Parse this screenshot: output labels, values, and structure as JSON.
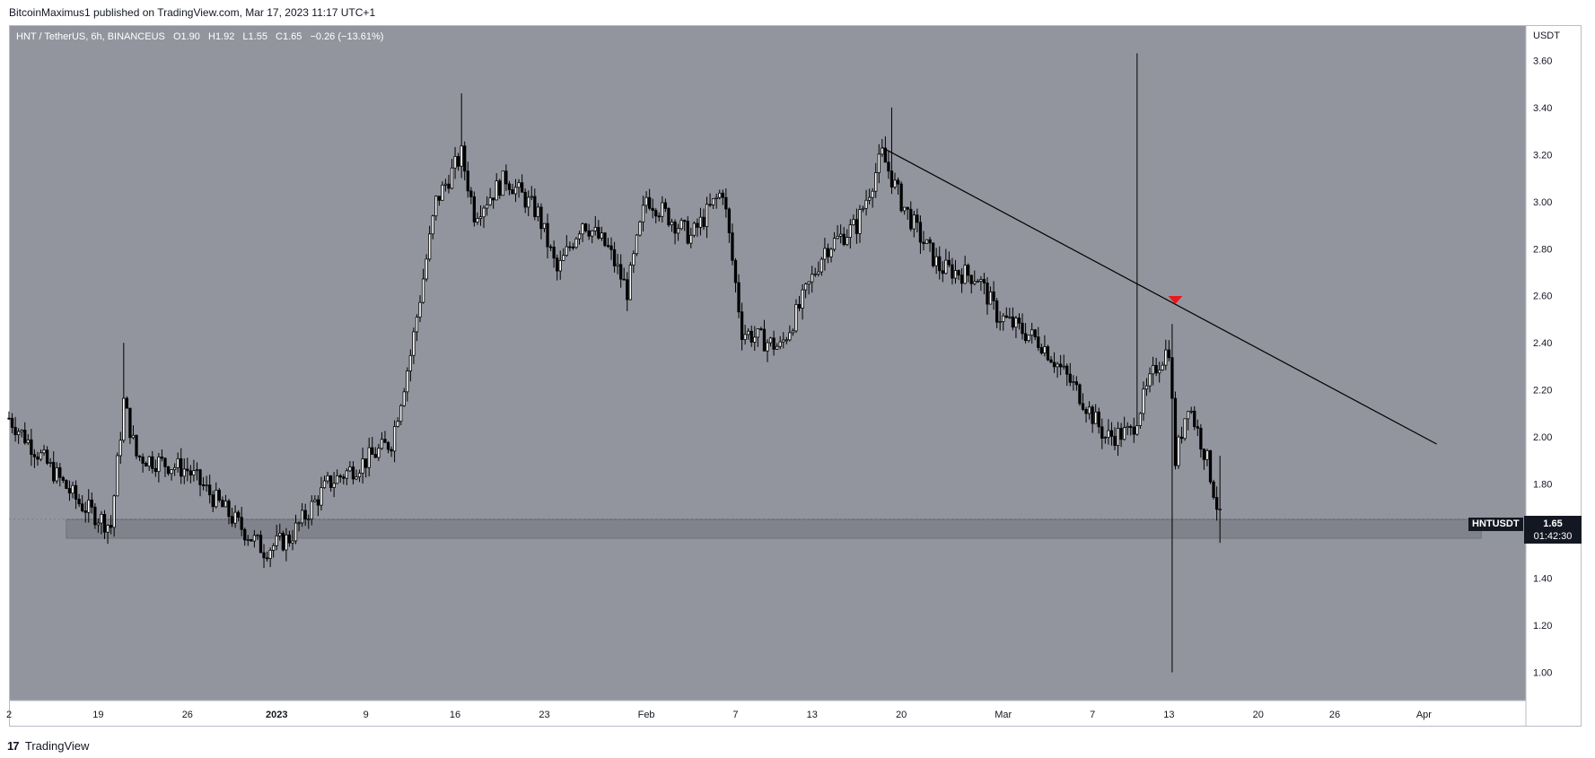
{
  "header": {
    "publish_line": "BitcoinMaximus1 published on TradingView.com, Mar 17, 2023 11:17 UTC+1"
  },
  "legend": {
    "symbol": "HNT / TetherUS, 6h, BINANCEUS",
    "open_label": "O",
    "open": "1.90",
    "high_label": "H",
    "high": "1.92",
    "low_label": "L",
    "low": "1.55",
    "close_label": "C",
    "close": "1.65",
    "change": "−0.26 (−13.61%)"
  },
  "price_axis": {
    "currency": "USDT",
    "current_price": "1.65",
    "countdown": "01:42:30",
    "symbol_tag": "HNTUSDT"
  },
  "footer": {
    "logo": "17",
    "brand": "TradingView"
  },
  "colors": {
    "plot_bg": "#92959e",
    "candle": "#000000",
    "support_zone": "#80838b",
    "trendline": "#000000",
    "marker": "#e8191c"
  },
  "chart_data": {
    "type": "candlestick",
    "y_ticks": [
      "1.00",
      "1.20",
      "1.40",
      "1.60",
      "1.80",
      "2.00",
      "2.20",
      "2.40",
      "2.60",
      "2.80",
      "3.00",
      "3.20",
      "3.40",
      "3.60"
    ],
    "ylim": [
      0.88,
      3.75
    ],
    "x_ticks": [
      "2",
      "19",
      "26",
      "2023",
      "9",
      "16",
      "23",
      "Feb",
      "7",
      "13",
      "20",
      "Mar",
      "7",
      "13",
      "20",
      "26",
      "Apr"
    ],
    "x_tick_positions": [
      12,
      19,
      26,
      33,
      40,
      47,
      54,
      62,
      69,
      75,
      82,
      90,
      97,
      103,
      110,
      116,
      123
    ],
    "xlim": [
      12,
      131
    ],
    "ohlc_key_points": [
      {
        "x": 12.0,
        "p": 2.08
      },
      {
        "x": 14.0,
        "p": 1.95
      },
      {
        "x": 17.5,
        "p": 1.72
      },
      {
        "x": 20.0,
        "p": 1.62
      },
      {
        "x": 21.0,
        "p": 2.15
      },
      {
        "x": 22.0,
        "p": 1.92
      },
      {
        "x": 26.0,
        "p": 1.86
      },
      {
        "x": 30.5,
        "p": 1.6
      },
      {
        "x": 32.0,
        "p": 1.52
      },
      {
        "x": 34.0,
        "p": 1.57
      },
      {
        "x": 37.0,
        "p": 1.8
      },
      {
        "x": 40.0,
        "p": 1.9
      },
      {
        "x": 42.0,
        "p": 1.98
      },
      {
        "x": 43.5,
        "p": 2.35
      },
      {
        "x": 45.5,
        "p": 3.0
      },
      {
        "x": 47.5,
        "p": 3.2
      },
      {
        "x": 48.5,
        "p": 2.95
      },
      {
        "x": 51.0,
        "p": 3.1
      },
      {
        "x": 53.5,
        "p": 2.95
      },
      {
        "x": 55.0,
        "p": 2.7
      },
      {
        "x": 57.0,
        "p": 2.92
      },
      {
        "x": 59.0,
        "p": 2.8
      },
      {
        "x": 60.5,
        "p": 2.62
      },
      {
        "x": 62.0,
        "p": 3.02
      },
      {
        "x": 65.5,
        "p": 2.85
      },
      {
        "x": 68.0,
        "p": 3.05
      },
      {
        "x": 69.5,
        "p": 2.45
      },
      {
        "x": 72.5,
        "p": 2.38
      },
      {
        "x": 74.0,
        "p": 2.55
      },
      {
        "x": 76.0,
        "p": 2.8
      },
      {
        "x": 78.5,
        "p": 2.9
      },
      {
        "x": 80.5,
        "p": 3.2
      },
      {
        "x": 82.0,
        "p": 3.0
      },
      {
        "x": 83.5,
        "p": 2.85
      },
      {
        "x": 85.0,
        "p": 2.72
      },
      {
        "x": 88.0,
        "p": 2.68
      },
      {
        "x": 89.5,
        "p": 2.52
      },
      {
        "x": 93.0,
        "p": 2.4
      },
      {
        "x": 96.0,
        "p": 2.18
      },
      {
        "x": 98.0,
        "p": 2.0
      },
      {
        "x": 100.0,
        "p": 2.02
      },
      {
        "x": 102.0,
        "p": 2.3
      },
      {
        "x": 103.0,
        "p": 2.38
      },
      {
        "x": 103.5,
        "p": 1.9
      },
      {
        "x": 104.5,
        "p": 2.15
      },
      {
        "x": 106.0,
        "p": 1.9
      },
      {
        "x": 107.0,
        "p": 1.65
      }
    ],
    "wick_extremes": [
      {
        "x": 21.1,
        "high": 2.4,
        "low": 2.1
      },
      {
        "x": 47.5,
        "high": 3.46,
        "low": 3.1
      },
      {
        "x": 81.2,
        "high": 3.4,
        "low": 3.05
      },
      {
        "x": 100.4,
        "high": 3.63,
        "low": 2.05
      },
      {
        "x": 103.3,
        "high": 2.48,
        "low": 1.0
      },
      {
        "x": 107.0,
        "high": 1.92,
        "low": 1.55
      }
    ],
    "support_zone": {
      "x_from": 16.5,
      "x_to": 127.5,
      "low": 1.57,
      "high": 1.65
    },
    "trendline": {
      "x1": 80.5,
      "y1": 3.23,
      "x2": 124.0,
      "y2": 1.97
    },
    "marker": {
      "x": 103.5,
      "price": 2.58,
      "shape": "down-triangle"
    }
  }
}
